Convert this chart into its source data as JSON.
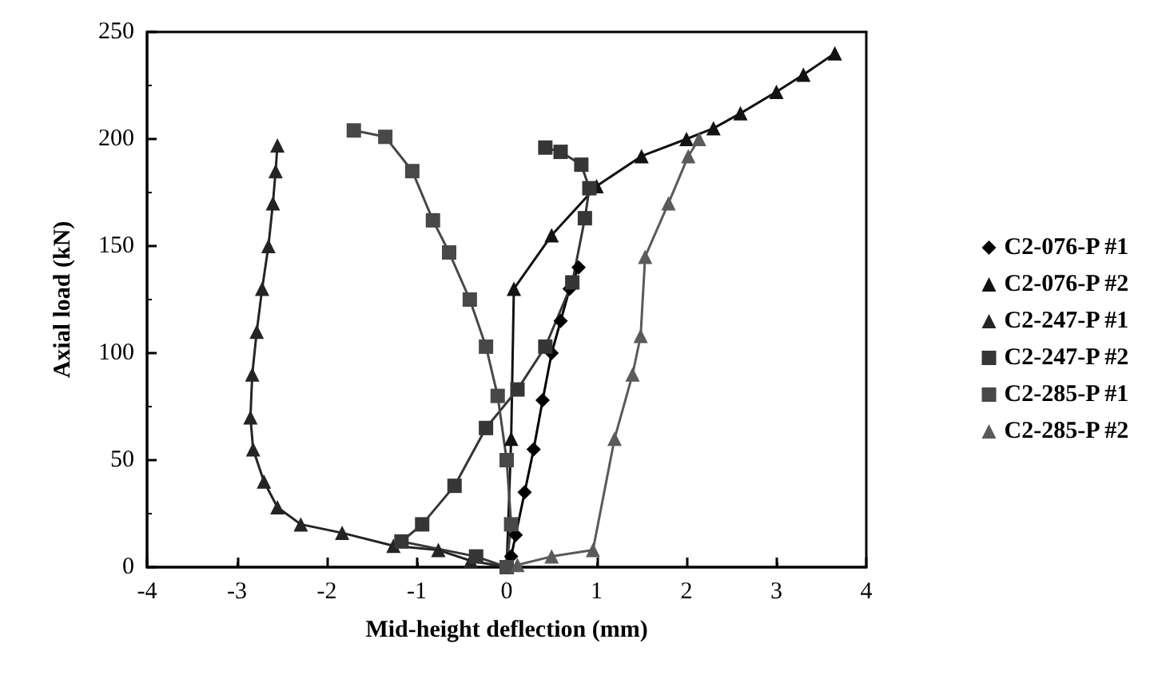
{
  "chart_data": {
    "type": "line",
    "xlabel": "Mid-height deflection (mm)",
    "ylabel": "Axial load (kN)",
    "xlim": [
      -4,
      4
    ],
    "xticks": [
      -4,
      -3,
      -2,
      -1,
      0,
      1,
      2,
      3,
      4
    ],
    "ylim": [
      0,
      250
    ],
    "yticks": [
      0,
      50,
      100,
      150,
      200,
      250
    ],
    "grid": false,
    "legend": "right",
    "line_style": "solid",
    "series": [
      {
        "name": "C2-076-P #1",
        "color": "#000000",
        "marker": "diamond",
        "x": [
          0,
          0.05,
          0.1,
          0.2,
          0.3,
          0.4,
          0.5,
          0.6,
          0.7,
          0.8
        ],
        "values": [
          0,
          5,
          15,
          35,
          55,
          78,
          100,
          115,
          130,
          140
        ]
      },
      {
        "name": "C2-076-P #2",
        "color": "#121212",
        "marker": "triangle",
        "x": [
          0,
          0.05,
          0.08,
          0.5,
          1,
          1.5,
          2,
          2.3,
          2.6,
          3,
          3.3,
          3.65
        ],
        "values": [
          0,
          60,
          130,
          155,
          178,
          192,
          200,
          205,
          212,
          222,
          230,
          240
        ]
      },
      {
        "name": "C2-247-P #1",
        "color": "#242424",
        "marker": "triangle",
        "x": [
          0,
          -0.4,
          -0.76,
          -1.26,
          -1.83,
          -2.29,
          -2.55,
          -2.7,
          -2.82,
          -2.85,
          -2.83,
          -2.78,
          -2.72,
          -2.65,
          -2.6,
          -2.57,
          -2.55
        ],
        "values": [
          0,
          3,
          8,
          10,
          16,
          20,
          28,
          40,
          55,
          70,
          90,
          110,
          130,
          150,
          170,
          185,
          197
        ]
      },
      {
        "name": "C2-247-P #2",
        "color": "#363636",
        "marker": "square",
        "x": [
          0,
          -0.34,
          -1.17,
          -0.94,
          -0.58,
          -0.23,
          0.12,
          0.43,
          0.73,
          0.87,
          0.92,
          0.83,
          0.6,
          0.43
        ],
        "values": [
          0,
          5,
          12,
          20,
          38,
          65,
          83,
          103,
          133,
          163,
          177,
          188,
          194,
          196
        ]
      },
      {
        "name": "C2-285-P #1",
        "color": "#484848",
        "marker": "square",
        "x": [
          0,
          0.05,
          0,
          -0.1,
          -0.23,
          -0.41,
          -0.64,
          -0.82,
          -1.05,
          -1.35,
          -1.7
        ],
        "values": [
          0,
          20,
          50,
          80,
          103,
          125,
          147,
          162,
          185,
          201,
          204
        ]
      },
      {
        "name": "C2-285-P #2",
        "color": "#5a5a5a",
        "marker": "triangle",
        "x": [
          0.12,
          0.5,
          0.96,
          1.2,
          1.4,
          1.49,
          1.54,
          1.8,
          2.02,
          2.14
        ],
        "values": [
          1,
          5,
          8,
          60,
          90,
          108,
          145,
          170,
          192,
          200
        ]
      }
    ]
  }
}
